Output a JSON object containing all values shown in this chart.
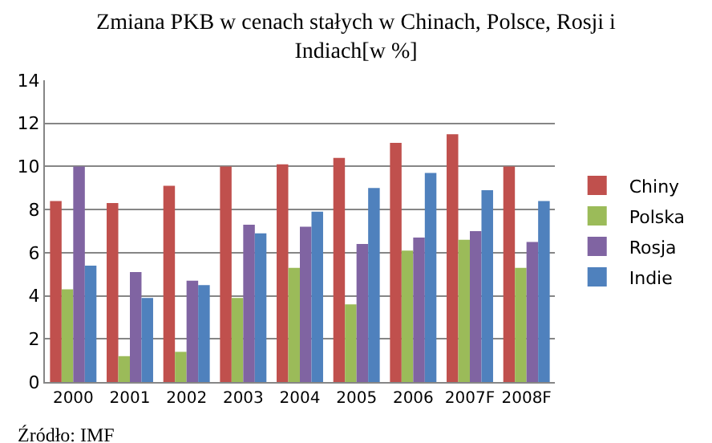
{
  "chart_data": {
    "type": "bar",
    "title": "Zmiana PKB w cenach stałych w Chinach, Polsce, Rosji i\nIndiach[w %]",
    "categories": [
      "2000",
      "2001",
      "2002",
      "2003",
      "2004",
      "2005",
      "2006",
      "2007F",
      "2008F"
    ],
    "series": [
      {
        "name": "Chiny",
        "color": "#c0504d",
        "values": [
          8.4,
          8.3,
          9.1,
          10.0,
          10.1,
          10.4,
          11.1,
          11.5,
          10.0
        ]
      },
      {
        "name": "Polska",
        "color": "#9bbb59",
        "values": [
          4.3,
          1.2,
          1.4,
          3.9,
          5.3,
          3.6,
          6.1,
          6.6,
          5.3
        ]
      },
      {
        "name": "Rosja",
        "color": "#8064a2",
        "values": [
          10.0,
          5.1,
          4.7,
          7.3,
          7.2,
          6.4,
          6.7,
          7.0,
          6.5
        ]
      },
      {
        "name": "Indie",
        "color": "#4f81bd",
        "values": [
          5.4,
          3.9,
          4.5,
          6.9,
          7.9,
          9.0,
          9.7,
          8.9,
          8.4
        ]
      }
    ],
    "ylim": [
      0,
      14
    ],
    "yticks": [
      0,
      2,
      4,
      6,
      8,
      10,
      12,
      14
    ],
    "grid": "y",
    "legend": "right",
    "annotations": [
      "Źródło: IMF"
    ]
  }
}
